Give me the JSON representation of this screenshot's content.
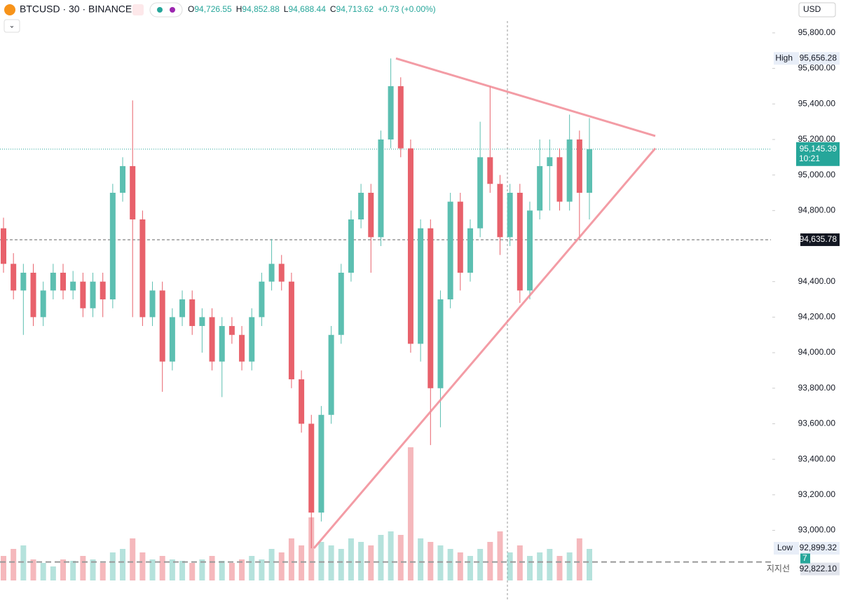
{
  "header": {
    "symbol": "BTCUSD · 30 · BINANCE",
    "open_label": "O",
    "open": "94,726.55",
    "high_label": "H",
    "high": "94,852.88",
    "low_label": "L",
    "low": "94,688.44",
    "close_label": "C",
    "close": "94,713.62",
    "change": "+0.73 (+0.00%)",
    "currency": "USD"
  },
  "chart_data": {
    "type": "candlestick",
    "up_color": "#5cbfb1",
    "down_color": "#e8616b",
    "ylim": [
      92710,
      95985
    ],
    "yticks": [
      {
        "value": 93000,
        "label": "93,000.00"
      },
      {
        "value": 93200,
        "label": "93,200.00"
      },
      {
        "value": 93400,
        "label": "93,400.00"
      },
      {
        "value": 93600,
        "label": "93,600.00"
      },
      {
        "value": 93800,
        "label": "93,800.00"
      },
      {
        "value": 94000,
        "label": "94,000.00"
      },
      {
        "value": 94200,
        "label": "94,200.00"
      },
      {
        "value": 94400,
        "label": "94,400.00"
      },
      {
        "value": 94800,
        "label": "94,800.00"
      },
      {
        "value": 95000,
        "label": "95,000.00"
      },
      {
        "value": 95200,
        "label": "95,200.00"
      },
      {
        "value": 95400,
        "label": "95,400.00"
      },
      {
        "value": 95600,
        "label": "95,600.00"
      },
      {
        "value": 95800,
        "label": "95,800.00"
      }
    ],
    "candles": [
      [
        94700,
        94760,
        94450,
        94500
      ],
      [
        94500,
        94560,
        94300,
        94350
      ],
      [
        94350,
        94500,
        94100,
        94450
      ],
      [
        94450,
        94500,
        94150,
        94200
      ],
      [
        94200,
        94400,
        94150,
        94350
      ],
      [
        94350,
        94500,
        94300,
        94450
      ],
      [
        94450,
        94500,
        94300,
        94350
      ],
      [
        94350,
        94460,
        94300,
        94400
      ],
      [
        94400,
        94450,
        94200,
        94250
      ],
      [
        94250,
        94450,
        94200,
        94400
      ],
      [
        94400,
        94450,
        94200,
        94300
      ],
      [
        94300,
        94950,
        94250,
        94900
      ],
      [
        94900,
        95100,
        94850,
        95050
      ],
      [
        95050,
        95420,
        94200,
        94750
      ],
      [
        94750,
        94800,
        94150,
        94200
      ],
      [
        94200,
        94400,
        94150,
        94350
      ],
      [
        94350,
        94400,
        93780,
        93950
      ],
      [
        93950,
        94250,
        93900,
        94200
      ],
      [
        94200,
        94350,
        94150,
        94300
      ],
      [
        94300,
        94350,
        94100,
        94150
      ],
      [
        94150,
        94250,
        94000,
        94200
      ],
      [
        94200,
        94250,
        93900,
        93950
      ],
      [
        93950,
        94200,
        93750,
        94150
      ],
      [
        94150,
        94200,
        94050,
        94100
      ],
      [
        94100,
        94150,
        93900,
        93950
      ],
      [
        93950,
        94250,
        93900,
        94200
      ],
      [
        94200,
        94450,
        94150,
        94400
      ],
      [
        94400,
        94640,
        94350,
        94500
      ],
      [
        94500,
        94550,
        94350,
        94400
      ],
      [
        94400,
        94450,
        93800,
        93850
      ],
      [
        93850,
        93900,
        93550,
        93600
      ],
      [
        93600,
        93650,
        92899,
        93100
      ],
      [
        93100,
        93700,
        93050,
        93650
      ],
      [
        93650,
        94150,
        93600,
        94100
      ],
      [
        94100,
        94500,
        94050,
        94450
      ],
      [
        94450,
        94800,
        94400,
        94750
      ],
      [
        94750,
        94950,
        94700,
        94900
      ],
      [
        94900,
        94950,
        94450,
        94650
      ],
      [
        94650,
        95250,
        94600,
        95200
      ],
      [
        95200,
        95656,
        95150,
        95500
      ],
      [
        95500,
        95550,
        95100,
        95150
      ],
      [
        95150,
        95200,
        94000,
        94050
      ],
      [
        94050,
        94750,
        93950,
        94700
      ],
      [
        94700,
        94750,
        93480,
        93800
      ],
      [
        93800,
        94350,
        93580,
        94300
      ],
      [
        94300,
        94900,
        94250,
        94850
      ],
      [
        94850,
        94900,
        94350,
        94450
      ],
      [
        94450,
        94750,
        94400,
        94700
      ],
      [
        94700,
        95300,
        94650,
        95100
      ],
      [
        95100,
        95500,
        94900,
        94950
      ],
      [
        94950,
        95000,
        94550,
        94650
      ],
      [
        94650,
        94950,
        94600,
        94900
      ],
      [
        94900,
        94950,
        94280,
        94350
      ],
      [
        94350,
        94850,
        94300,
        94800
      ],
      [
        94800,
        95200,
        94750,
        95050
      ],
      [
        95050,
        95200,
        94800,
        95100
      ],
      [
        95100,
        95150,
        94800,
        94850
      ],
      [
        94850,
        95340,
        94800,
        95200
      ],
      [
        95200,
        95250,
        94640,
        94900
      ],
      [
        94900,
        95320,
        94750,
        95145.39
      ]
    ],
    "volumes": [
      35,
      45,
      50,
      30,
      25,
      20,
      30,
      28,
      35,
      30,
      25,
      40,
      45,
      60,
      40,
      30,
      35,
      30,
      28,
      25,
      30,
      35,
      28,
      25,
      30,
      35,
      30,
      45,
      40,
      60,
      50,
      90,
      55,
      50,
      45,
      60,
      55,
      50,
      65,
      70,
      65,
      190,
      60,
      55,
      50,
      45,
      40,
      35,
      45,
      55,
      70,
      40,
      50,
      35,
      40,
      45,
      35,
      40,
      60,
      45
    ],
    "high_label": "High",
    "high_value": "95,656.28",
    "high_price": 95656.28,
    "last_price": 95145.39,
    "last_label": "95,145.39",
    "countdown": "10:21",
    "cross_price": 94635.78,
    "cross_label": "94,635.78",
    "low_label": "Low",
    "low_value": "92,899.32",
    "low_price": 92899.32,
    "support_name": "지지선",
    "support_badge": "7",
    "support_price": 92822.1,
    "support_label": "92,822.10",
    "trendlines": [
      [
        95656.28,
        95220
      ],
      [
        92899.32,
        95150
      ]
    ]
  }
}
